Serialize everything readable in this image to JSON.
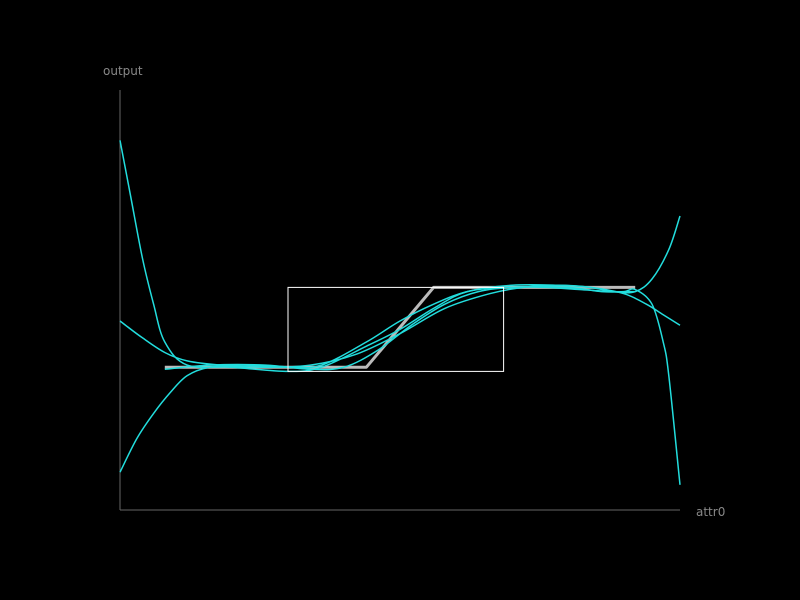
{
  "chart_data": {
    "type": "line",
    "title": "",
    "xlabel": "attr0",
    "ylabel": "output",
    "xlim": [
      0,
      1
    ],
    "ylim": [
      0,
      1
    ],
    "grid": false,
    "colors": {
      "background": "#000000",
      "axis": "#666666",
      "label": "#888888",
      "target": "#bbbbbb",
      "fits": "#22dddd",
      "box": "#ffffff"
    },
    "target": {
      "x": [
        0.08,
        0.44,
        0.56,
        0.92
      ],
      "y": [
        0.34,
        0.34,
        0.53,
        0.53
      ]
    },
    "highlight_box": {
      "x": [
        0.3,
        0.685
      ],
      "y": [
        0.33,
        0.53
      ]
    },
    "series": [
      {
        "x": [
          0,
          0.02,
          0.04,
          0.06,
          0.08,
          0.12,
          0.2,
          0.3,
          0.36,
          0.44,
          0.5,
          0.56,
          0.62,
          0.7,
          0.8,
          0.86,
          0.9,
          0.92,
          0.95,
          0.97,
          0.98,
          1.0
        ],
        "y": [
          0.88,
          0.74,
          0.6,
          0.49,
          0.4,
          0.345,
          0.34,
          0.33,
          0.34,
          0.39,
          0.43,
          0.48,
          0.52,
          0.53,
          0.53,
          0.52,
          0.52,
          0.525,
          0.49,
          0.4,
          0.32,
          0.06
        ]
      },
      {
        "x": [
          0,
          0.03,
          0.06,
          0.09,
          0.12,
          0.16,
          0.22,
          0.3,
          0.36,
          0.44,
          0.5,
          0.56,
          0.62,
          0.7,
          0.78,
          0.84,
          0.88,
          0.92,
          0.95,
          0.98,
          1.0
        ],
        "y": [
          0.09,
          0.17,
          0.23,
          0.28,
          0.32,
          0.34,
          0.345,
          0.34,
          0.345,
          0.4,
          0.45,
          0.49,
          0.52,
          0.535,
          0.535,
          0.53,
          0.52,
          0.52,
          0.55,
          0.62,
          0.7
        ]
      },
      {
        "x": [
          0,
          0.04,
          0.08,
          0.12,
          0.18,
          0.26,
          0.34,
          0.42,
          0.5,
          0.58,
          0.66,
          0.72,
          0.78,
          0.84,
          0.9,
          0.94,
          0.97,
          1.0
        ],
        "y": [
          0.45,
          0.41,
          0.375,
          0.355,
          0.345,
          0.34,
          0.345,
          0.37,
          0.42,
          0.48,
          0.515,
          0.53,
          0.535,
          0.53,
          0.515,
          0.49,
          0.465,
          0.44
        ]
      },
      {
        "x": [
          0.08,
          0.16,
          0.26,
          0.34,
          0.4,
          0.46,
          0.52,
          0.58,
          0.64,
          0.7,
          0.76,
          0.82,
          0.88,
          0.92
        ],
        "y": [
          0.335,
          0.345,
          0.345,
          0.335,
          0.34,
          0.38,
          0.44,
          0.49,
          0.52,
          0.53,
          0.53,
          0.525,
          0.52,
          0.52
        ]
      }
    ]
  }
}
